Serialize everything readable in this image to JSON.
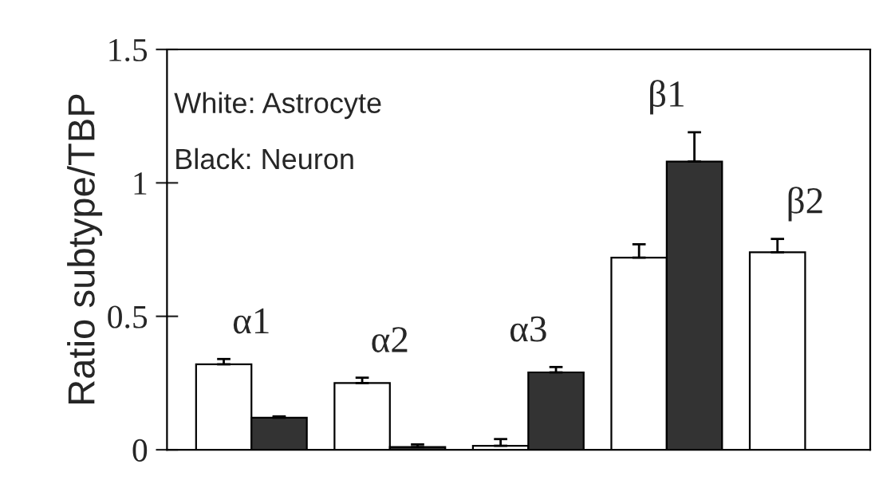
{
  "chart_data": {
    "type": "bar",
    "ylabel": "Ratio subtype/TBP",
    "categories": [
      "α1",
      "α2",
      "α3",
      "β1",
      "β2"
    ],
    "series": [
      {
        "color": "#ffffff",
        "values": [
          0.32,
          0.25,
          0.015,
          0.72,
          0.74
        ],
        "errors": [
          [
            0.32,
            0.34
          ],
          [
            0.25,
            0.27
          ],
          [
            0.015,
            0.04
          ],
          [
            0.72,
            0.77
          ],
          [
            0.74,
            0.79
          ]
        ]
      },
      {
        "color": "#333333",
        "values": [
          0.12,
          0.01,
          0.29,
          1.08,
          null
        ],
        "errors": [
          [
            0.12,
            0.125
          ],
          [
            0.01,
            0.02
          ],
          [
            0.29,
            0.31
          ],
          [
            1.08,
            1.19
          ],
          null
        ]
      }
    ],
    "ylim": [
      0,
      1.5
    ],
    "yticks": [
      0,
      0.5,
      1,
      1.5
    ],
    "grid": false,
    "legend": false,
    "annotations": [
      "White: Astrocyte",
      "Black: Neuron"
    ]
  }
}
